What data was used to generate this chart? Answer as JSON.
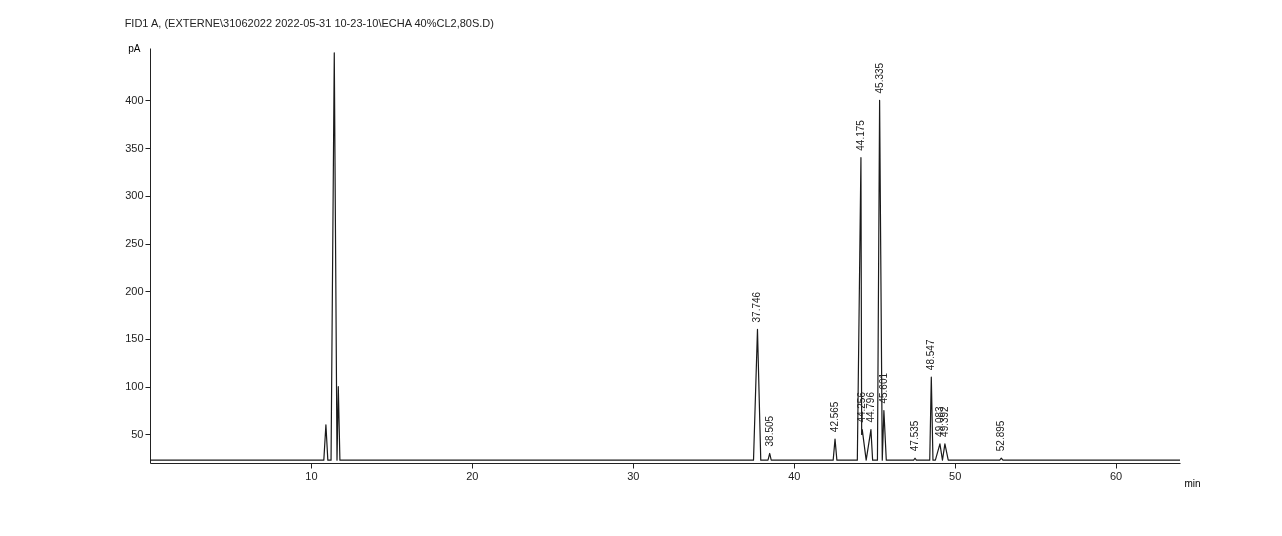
{
  "chart_data": {
    "type": "line",
    "title": "FID1 A, (EXTERNE\\31062022 2022-05-31 10-23-10\\ECHA 40%CL2,80S.D)",
    "xlabel": "min",
    "ylabel": "pA",
    "xlim": [
      0,
      64
    ],
    "xticks": [
      10,
      20,
      30,
      40,
      50,
      60
    ],
    "ylim": [
      20,
      455
    ],
    "yticks": [
      50,
      100,
      150,
      200,
      250,
      300,
      350,
      400
    ],
    "grid": false,
    "marker": "none",
    "line_style": "solid",
    "series": [
      {
        "color": "#1a1a1a",
        "x": [
          0,
          10.8,
          10.93,
          11.05,
          11.25,
          11.45,
          11.62,
          11.7,
          11.8,
          37.5,
          37.746,
          37.95,
          38.4,
          38.505,
          38.6,
          42.45,
          42.565,
          42.68,
          43.95,
          44.175,
          44.22,
          44.256,
          44.5,
          44.796,
          44.9,
          45.2,
          45.335,
          45.5,
          45.601,
          45.75,
          47.45,
          47.535,
          47.62,
          48.45,
          48.547,
          48.65,
          48.8,
          49.083,
          49.24,
          49.392,
          49.6,
          52.8,
          52.895,
          53,
          64
        ],
        "values": [
          23,
          23,
          60,
          23,
          23,
          450,
          23,
          100,
          23,
          23,
          160,
          23,
          23,
          30,
          23,
          23,
          45,
          23,
          23,
          340,
          50,
          55,
          23,
          55,
          23,
          23,
          400,
          23,
          75,
          23,
          23,
          25,
          23,
          23,
          110,
          23,
          23,
          40,
          23,
          40,
          23,
          23,
          25,
          23,
          23
        ]
      }
    ],
    "annotations": [
      {
        "text": "37.746",
        "x": 37.746,
        "y": 160
      },
      {
        "text": "38.505",
        "x": 38.505,
        "y": 30
      },
      {
        "text": "42.565",
        "x": 42.565,
        "y": 45
      },
      {
        "text": "44.175",
        "x": 44.175,
        "y": 340
      },
      {
        "text": "44.256",
        "x": 44.256,
        "y": 55
      },
      {
        "text": "44.796",
        "x": 44.796,
        "y": 55
      },
      {
        "text": "45.335",
        "x": 45.335,
        "y": 400
      },
      {
        "text": "45.601",
        "x": 45.601,
        "y": 75
      },
      {
        "text": "47.535",
        "x": 47.535,
        "y": 25
      },
      {
        "text": "48.547",
        "x": 48.547,
        "y": 110
      },
      {
        "text": "49.083",
        "x": 49.083,
        "y": 40
      },
      {
        "text": "49.392",
        "x": 49.392,
        "y": 40
      },
      {
        "text": "52.895",
        "x": 52.895,
        "y": 25
      }
    ]
  }
}
